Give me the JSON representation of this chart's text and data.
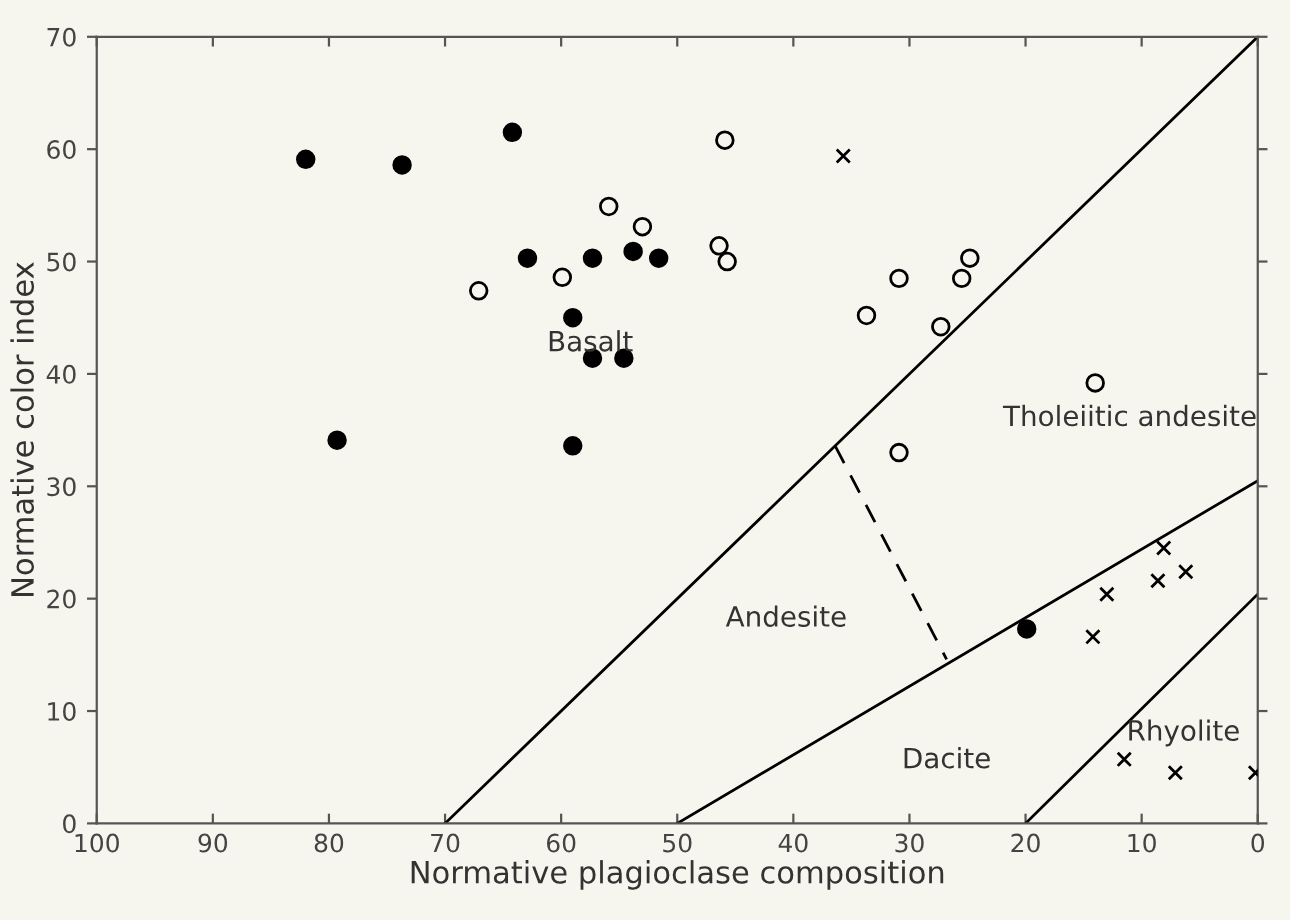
{
  "chart_data": {
    "type": "scatter",
    "xlabel": "Normative plagioclase composition",
    "ylabel": "Normative color index",
    "xlim": [
      100,
      0
    ],
    "ylim": [
      0,
      70
    ],
    "xticks": [
      100,
      90,
      80,
      70,
      60,
      50,
      40,
      30,
      20,
      10,
      0
    ],
    "yticks": [
      0,
      10,
      20,
      30,
      40,
      50,
      60,
      70
    ],
    "grid": false,
    "legend": false,
    "series": [
      {
        "marker": "circle",
        "color": "#000000",
        "x": [
          82.0,
          73.7,
          64.2,
          62.9,
          57.3,
          53.8,
          51.6,
          59.0,
          57.3,
          54.6,
          79.3,
          59.0,
          19.9
        ],
        "values": [
          59.1,
          58.6,
          61.5,
          50.3,
          50.3,
          50.9,
          50.3,
          45.0,
          41.4,
          41.4,
          34.1,
          33.6,
          17.3
        ]
      },
      {
        "type": "scatter",
        "marker": "circle",
        "color": "#f7f6ee",
        "x": [
          67.1,
          59.9,
          55.9,
          53.0,
          45.9,
          46.4,
          45.7,
          30.9,
          25.5,
          24.8,
          33.7,
          27.3,
          14.0,
          30.9
        ],
        "values": [
          47.4,
          48.6,
          54.9,
          53.1,
          60.8,
          51.4,
          50.0,
          48.5,
          48.5,
          50.3,
          45.2,
          44.2,
          39.2,
          33.0
        ]
      },
      {
        "type": "scatter",
        "marker": "cross",
        "color": "#000000",
        "x": [
          35.7,
          8.1,
          6.2,
          8.6,
          13.0,
          14.2,
          11.5,
          7.1,
          0.2
        ],
        "values": [
          59.4,
          24.5,
          22.4,
          21.6,
          20.4,
          16.6,
          5.7,
          4.5,
          4.5
        ]
      },
      {
        "type": "line",
        "line_style": "solid",
        "color": "#000000",
        "x": [
          70,
          0
        ],
        "values": [
          0,
          70
        ]
      },
      {
        "type": "line",
        "line_style": "solid",
        "color": "#000000",
        "x": [
          50,
          0
        ],
        "values": [
          0,
          30.5
        ]
      },
      {
        "type": "line",
        "line_style": "solid",
        "color": "#000000",
        "x": [
          20,
          0
        ],
        "values": [
          0,
          20.4
        ]
      },
      {
        "type": "line",
        "line_style": "dashed",
        "color": "#000000",
        "x": [
          36.4,
          26.8
        ],
        "values": [
          33.6,
          14.6
        ]
      }
    ],
    "annotations": [
      "Basalt",
      "Tholeiitic andesite",
      "Andesite",
      "Dacite",
      "Rhyolite"
    ]
  }
}
